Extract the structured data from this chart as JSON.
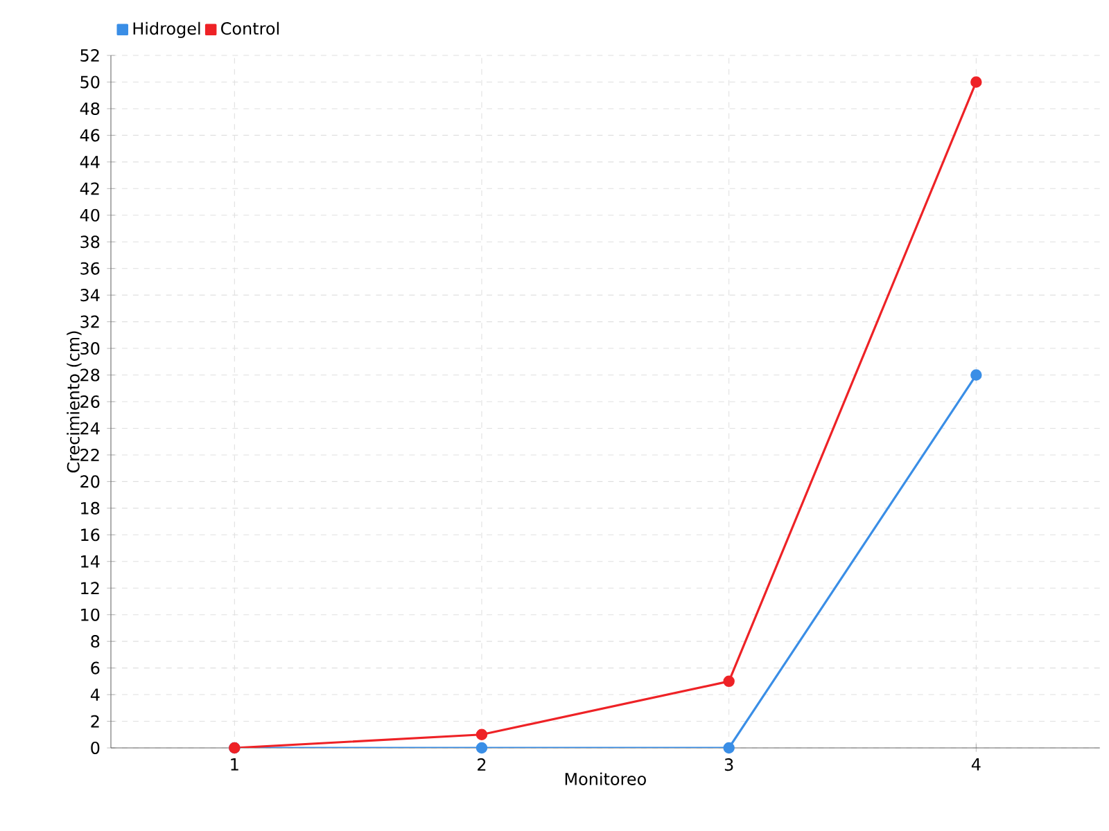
{
  "chart_data": {
    "type": "line",
    "xlabel": "Monitoreo",
    "ylabel": "Crecimiento (cm)",
    "categories": [
      "1",
      "2",
      "3",
      "4"
    ],
    "series": [
      {
        "name": "Hidrogel",
        "color": "#3a8ee6",
        "values": [
          0,
          0,
          0,
          28
        ]
      },
      {
        "name": "Control",
        "color": "#ee2226",
        "values": [
          0,
          1,
          5,
          50
        ]
      }
    ],
    "ylim": [
      0,
      52
    ],
    "yticks": [
      0,
      2,
      4,
      6,
      8,
      10,
      12,
      14,
      16,
      18,
      20,
      22,
      24,
      26,
      28,
      30,
      32,
      34,
      36,
      38,
      40,
      42,
      44,
      46,
      48,
      50,
      52
    ],
    "grid": true,
    "legend": "top left",
    "marker": "circle",
    "line_style": "solid"
  }
}
